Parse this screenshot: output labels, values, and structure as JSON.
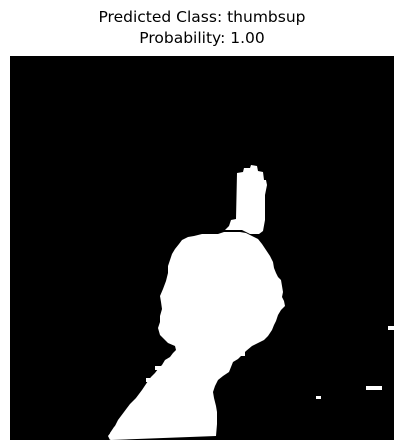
{
  "title": {
    "line1": "Predicted Class: thumbsup",
    "line2": "Probability: 1.00"
  },
  "image": {
    "kind": "binary-segmentation-mask",
    "background_color": "#000000",
    "foreground_color": "#ffffff",
    "depicted_subject": "hand-thumbs-up-mask"
  }
}
